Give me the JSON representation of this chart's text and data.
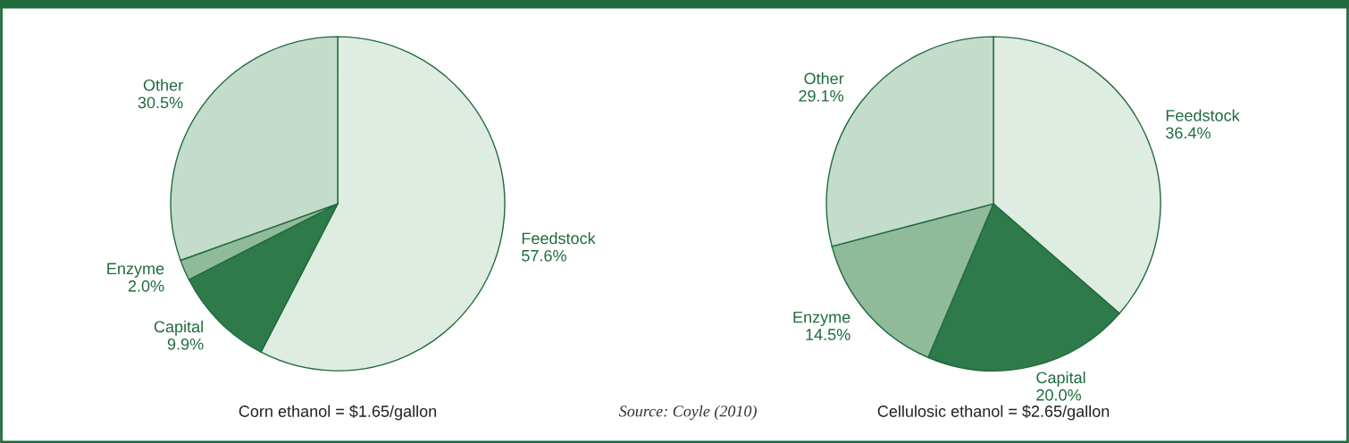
{
  "chart_data": [
    {
      "type": "pie",
      "title": "Corn ethanol = $1.65/gallon",
      "categories": [
        "Feedstock",
        "Capital",
        "Enzyme",
        "Other"
      ],
      "values": [
        57.6,
        9.9,
        2.0,
        30.5
      ],
      "value_labels": [
        "57.6%",
        "9.9%",
        "2.0%",
        "30.5%"
      ],
      "colors": [
        "#dfece2",
        "#2f7a4a",
        "#8fbb9b",
        "#c3dccb"
      ],
      "legend": false
    },
    {
      "type": "pie",
      "title": "Cellulosic ethanol = $2.65/gallon",
      "categories": [
        "Feedstock",
        "Capital",
        "Enzyme",
        "Other"
      ],
      "values": [
        36.4,
        20.0,
        14.5,
        29.1
      ],
      "value_labels": [
        "36.4%",
        "20.0%",
        "14.5%",
        "29.1%"
      ],
      "colors": [
        "#dfece2",
        "#2f7a4a",
        "#8fbb9b",
        "#c3dccb"
      ],
      "legend": false,
      "annotations": [
        "Source: Coyle (2010)"
      ]
    }
  ]
}
